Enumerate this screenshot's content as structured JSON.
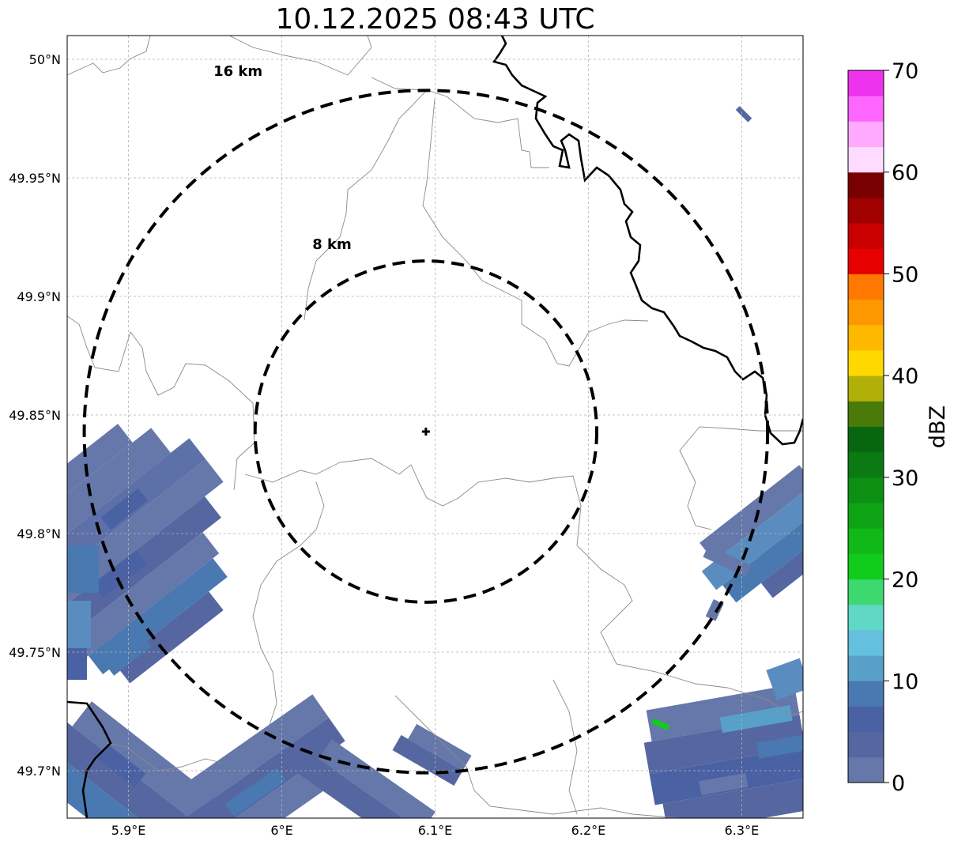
{
  "title": "10.12.2025 08:43 UTC",
  "map": {
    "lon_range": [
      5.86,
      6.34
    ],
    "lat_range": [
      49.68,
      50.01
    ],
    "lon_ticks": [
      {
        "value": 5.9,
        "label": "5.9°E"
      },
      {
        "value": 6.0,
        "label": "6°E"
      },
      {
        "value": 6.1,
        "label": "6.1°E"
      },
      {
        "value": 6.2,
        "label": "6.2°E"
      },
      {
        "value": 6.3,
        "label": "6.3°E"
      }
    ],
    "lat_ticks": [
      {
        "value": 50.0,
        "label": "50°N"
      },
      {
        "value": 49.95,
        "label": "49.95°N"
      },
      {
        "value": 49.9,
        "label": "49.9°N"
      },
      {
        "value": 49.85,
        "label": "49.85°N"
      },
      {
        "value": 49.8,
        "label": "49.8°N"
      },
      {
        "value": 49.75,
        "label": "49.75°N"
      },
      {
        "value": 49.7,
        "label": "49.7°N"
      }
    ],
    "gridlines": true,
    "center": {
      "lon": 6.094,
      "lat": 49.843
    },
    "rings": [
      {
        "radius_km": 8,
        "label": "8 km"
      },
      {
        "radius_km": 16,
        "label": "16 km"
      }
    ]
  },
  "colorbar": {
    "label": "dBZ",
    "min": 0,
    "max": 70,
    "step": 2.5,
    "tick_labels": [
      "0",
      "10",
      "20",
      "30",
      "40",
      "50",
      "60",
      "70"
    ],
    "colors": [
      "#6677aa",
      "#5566a0",
      "#4a62a4",
      "#4a78b0",
      "#58a0c8",
      "#64c0de",
      "#60d8c8",
      "#3ed870",
      "#12cc1c",
      "#10b818",
      "#0fa416",
      "#0d8f14",
      "#0b7a12",
      "#096610",
      "#4a7a08",
      "#b0b008",
      "#ffd800",
      "#ffb800",
      "#ff9800",
      "#ff7800",
      "#e80000",
      "#c80000",
      "#a00000",
      "#780000",
      "#ffdcff",
      "#ffaaff",
      "#ff66ff",
      "#ee33ee"
    ]
  },
  "palette": {
    "border": "#000000",
    "admin_line": "#8a8a8a",
    "grid": "#b4b4b4"
  }
}
